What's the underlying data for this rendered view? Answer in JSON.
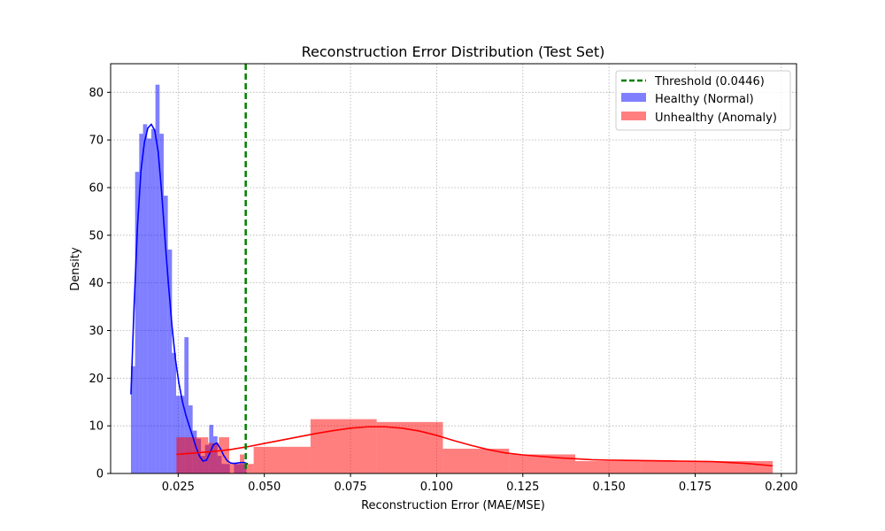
{
  "chart_data": {
    "type": "histogram",
    "title": "Reconstruction Error Distribution (Test Set)",
    "xlabel": "Reconstruction Error (MAE/MSE)",
    "ylabel": "Density",
    "xlim": [
      0.0054,
      0.2044
    ],
    "ylim": [
      0,
      86
    ],
    "grid": true,
    "x_ticks": [
      0.025,
      0.05,
      0.075,
      0.1,
      0.125,
      0.15,
      0.175,
      0.2
    ],
    "x_tick_labels": [
      "0.025",
      "0.050",
      "0.075",
      "0.100",
      "0.125",
      "0.150",
      "0.175",
      "0.200"
    ],
    "y_ticks": [
      0,
      10,
      20,
      30,
      40,
      50,
      60,
      70,
      80
    ],
    "y_tick_labels": [
      "0",
      "10",
      "20",
      "30",
      "40",
      "50",
      "60",
      "70",
      "80"
    ],
    "legend_position": "top-right",
    "threshold": {
      "label": "Threshold (0.0446)",
      "value": 0.0446,
      "color": "#008000"
    },
    "series": [
      {
        "name": "Healthy (Normal)",
        "color": "#0000ff",
        "kde_color": "#0000ff",
        "bins": [
          {
            "x0": 0.0113,
            "x1": 0.0125,
            "density": 22.5
          },
          {
            "x0": 0.0125,
            "x1": 0.0137,
            "density": 63.3
          },
          {
            "x0": 0.0137,
            "x1": 0.0148,
            "density": 71.3
          },
          {
            "x0": 0.0148,
            "x1": 0.016,
            "density": 73.3
          },
          {
            "x0": 0.016,
            "x1": 0.0172,
            "density": 70.3
          },
          {
            "x0": 0.0172,
            "x1": 0.0184,
            "density": 72.3
          },
          {
            "x0": 0.0184,
            "x1": 0.0196,
            "density": 81.6
          },
          {
            "x0": 0.0196,
            "x1": 0.0208,
            "density": 71.3
          },
          {
            "x0": 0.0208,
            "x1": 0.022,
            "density": 58.3
          },
          {
            "x0": 0.022,
            "x1": 0.0232,
            "density": 47.0
          },
          {
            "x0": 0.0232,
            "x1": 0.0244,
            "density": 25.3
          },
          {
            "x0": 0.0244,
            "x1": 0.0256,
            "density": 16.3
          },
          {
            "x0": 0.0256,
            "x1": 0.0268,
            "density": 16.3
          },
          {
            "x0": 0.0268,
            "x1": 0.028,
            "density": 28.6
          },
          {
            "x0": 0.028,
            "x1": 0.0292,
            "density": 14.3
          },
          {
            "x0": 0.0292,
            "x1": 0.0304,
            "density": 9.0
          },
          {
            "x0": 0.0304,
            "x1": 0.0316,
            "density": 7.3
          },
          {
            "x0": 0.0316,
            "x1": 0.0328,
            "density": 3.7
          },
          {
            "x0": 0.0328,
            "x1": 0.034,
            "density": 6.0
          },
          {
            "x0": 0.034,
            "x1": 0.0352,
            "density": 10.2
          },
          {
            "x0": 0.0352,
            "x1": 0.0364,
            "density": 7.8
          },
          {
            "x0": 0.0364,
            "x1": 0.0376,
            "density": 3.7
          },
          {
            "x0": 0.0376,
            "x1": 0.0388,
            "density": 2.0
          },
          {
            "x0": 0.0388,
            "x1": 0.04,
            "density": 2.0
          },
          {
            "x0": 0.04,
            "x1": 0.0412,
            "density": 0.0
          },
          {
            "x0": 0.0412,
            "x1": 0.0424,
            "density": 2.0
          },
          {
            "x0": 0.0424,
            "x1": 0.0436,
            "density": 2.0
          },
          {
            "x0": 0.0436,
            "x1": 0.0448,
            "density": 2.0
          }
        ],
        "kde": [
          [
            0.0113,
            16.6
          ],
          [
            0.0122,
            35
          ],
          [
            0.0132,
            52
          ],
          [
            0.0142,
            63.5
          ],
          [
            0.0152,
            69.5
          ],
          [
            0.0162,
            72.5
          ],
          [
            0.0172,
            73.3
          ],
          [
            0.0182,
            72
          ],
          [
            0.0192,
            67.5
          ],
          [
            0.0202,
            59
          ],
          [
            0.0212,
            49
          ],
          [
            0.0222,
            39.5
          ],
          [
            0.0232,
            31
          ],
          [
            0.0242,
            24
          ],
          [
            0.0252,
            19
          ],
          [
            0.0262,
            15.2
          ],
          [
            0.0272,
            12.3
          ],
          [
            0.0282,
            10
          ],
          [
            0.0292,
            7.8
          ],
          [
            0.0302,
            5.5
          ],
          [
            0.0312,
            3.6
          ],
          [
            0.0322,
            2.6
          ],
          [
            0.0332,
            2.8
          ],
          [
            0.0342,
            4.3
          ],
          [
            0.0352,
            6.0
          ],
          [
            0.0362,
            6.4
          ],
          [
            0.0372,
            5.3
          ],
          [
            0.0382,
            3.8
          ],
          [
            0.0392,
            2.7
          ],
          [
            0.0402,
            2.2
          ],
          [
            0.0412,
            2.1
          ],
          [
            0.0422,
            2.2
          ],
          [
            0.0432,
            2.3
          ],
          [
            0.0442,
            2.3
          ],
          [
            0.0452,
            2.0
          ]
        ]
      },
      {
        "name": "Unhealthy (Anomaly)",
        "color": "#ff0000",
        "kde_color": "#ff0000",
        "bins": [
          {
            "x0": 0.0245,
            "x1": 0.0337,
            "density": 7.6
          },
          {
            "x0": 0.0337,
            "x1": 0.0368,
            "density": 6.4
          },
          {
            "x0": 0.0368,
            "x1": 0.0398,
            "density": 7.6
          },
          {
            "x0": 0.0398,
            "x1": 0.0429,
            "density": 2.0
          },
          {
            "x0": 0.0429,
            "x1": 0.0442,
            "density": 4.0
          },
          {
            "x0": 0.0442,
            "x1": 0.0469,
            "density": 2.0
          },
          {
            "x0": 0.0469,
            "x1": 0.0634,
            "density": 5.6
          },
          {
            "x0": 0.0634,
            "x1": 0.0826,
            "density": 11.4
          },
          {
            "x0": 0.0826,
            "x1": 0.1018,
            "density": 10.8
          },
          {
            "x0": 0.1018,
            "x1": 0.121,
            "density": 5.2
          },
          {
            "x0": 0.121,
            "x1": 0.1402,
            "density": 4.0
          },
          {
            "x0": 0.1402,
            "x1": 0.1594,
            "density": 2.6
          },
          {
            "x0": 0.1594,
            "x1": 0.1786,
            "density": 2.6
          },
          {
            "x0": 0.1786,
            "x1": 0.1975,
            "density": 2.6
          }
        ],
        "kde": [
          [
            0.0245,
            4.0
          ],
          [
            0.03,
            4.3
          ],
          [
            0.035,
            4.6
          ],
          [
            0.04,
            5.0
          ],
          [
            0.045,
            5.6
          ],
          [
            0.05,
            6.3
          ],
          [
            0.055,
            7.0
          ],
          [
            0.06,
            7.7
          ],
          [
            0.065,
            8.4
          ],
          [
            0.07,
            9.0
          ],
          [
            0.075,
            9.5
          ],
          [
            0.08,
            9.8
          ],
          [
            0.085,
            9.8
          ],
          [
            0.09,
            9.5
          ],
          [
            0.095,
            8.9
          ],
          [
            0.1,
            8.0
          ],
          [
            0.105,
            6.9
          ],
          [
            0.11,
            5.9
          ],
          [
            0.115,
            5.0
          ],
          [
            0.12,
            4.3
          ],
          [
            0.125,
            3.9
          ],
          [
            0.13,
            3.6
          ],
          [
            0.135,
            3.3
          ],
          [
            0.14,
            3.1
          ],
          [
            0.145,
            2.9
          ],
          [
            0.15,
            2.8
          ],
          [
            0.16,
            2.7
          ],
          [
            0.17,
            2.6
          ],
          [
            0.18,
            2.5
          ],
          [
            0.19,
            2.1
          ],
          [
            0.1975,
            1.6
          ]
        ]
      }
    ]
  }
}
